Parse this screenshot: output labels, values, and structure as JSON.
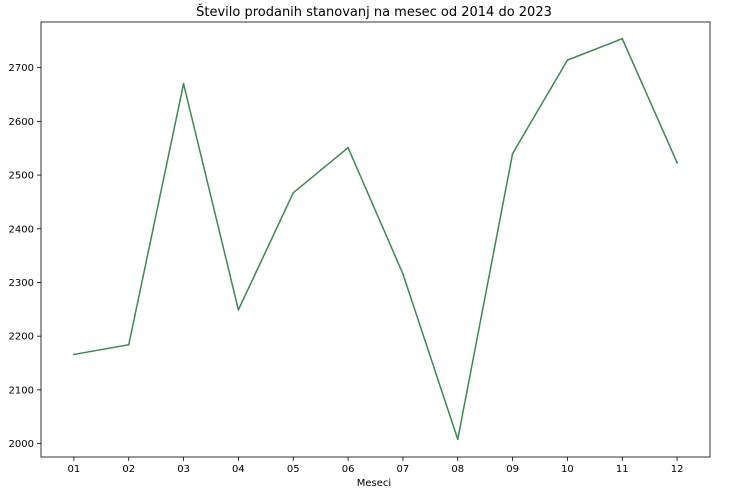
{
  "chart_data": {
    "type": "line",
    "title": "Število prodanih stanovanj na mesec od 2014 do 2023",
    "xlabel": "Meseci",
    "ylabel": "",
    "categories": [
      "01",
      "02",
      "03",
      "04",
      "05",
      "06",
      "07",
      "08",
      "09",
      "10",
      "11",
      "12"
    ],
    "series": [
      {
        "values": [
          2166,
          2184,
          2670,
          2249,
          2467,
          2551,
          2316,
          2008,
          2540,
          2714,
          2754,
          2523
        ],
        "color": "#3a8a4f"
      }
    ],
    "ylim": [
      1975,
      2785
    ],
    "yticks": [
      2000,
      2100,
      2200,
      2300,
      2400,
      2500,
      2600,
      2700
    ],
    "grid": false,
    "legend": false
  }
}
